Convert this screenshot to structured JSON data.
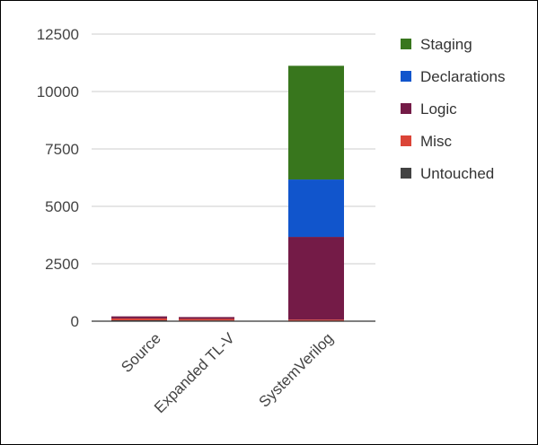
{
  "chart_data": {
    "type": "bar",
    "stacked": true,
    "categories": [
      "Source",
      "Expanded TL-V",
      "SystemVerilog"
    ],
    "series": [
      {
        "name": "Untouched",
        "color": "#424242",
        "values": [
          40,
          30,
          10
        ]
      },
      {
        "name": "Misc",
        "color": "#db4437",
        "values": [
          80,
          70,
          60
        ]
      },
      {
        "name": "Logic",
        "color": "#741b47",
        "values": [
          90,
          80,
          3600
        ]
      },
      {
        "name": "Declarations",
        "color": "#1155cc",
        "values": [
          0,
          0,
          2500
        ]
      },
      {
        "name": "Staging",
        "color": "#38761d",
        "values": [
          0,
          0,
          4950
        ]
      }
    ],
    "legend_order": [
      "Staging",
      "Declarations",
      "Logic",
      "Misc",
      "Untouched"
    ],
    "legend_position": "right",
    "ylim": [
      0,
      12500
    ],
    "yticks": [
      0,
      2500,
      5000,
      7500,
      10000,
      12500
    ],
    "grid": true,
    "xlabel": "",
    "ylabel": "",
    "title": ""
  }
}
